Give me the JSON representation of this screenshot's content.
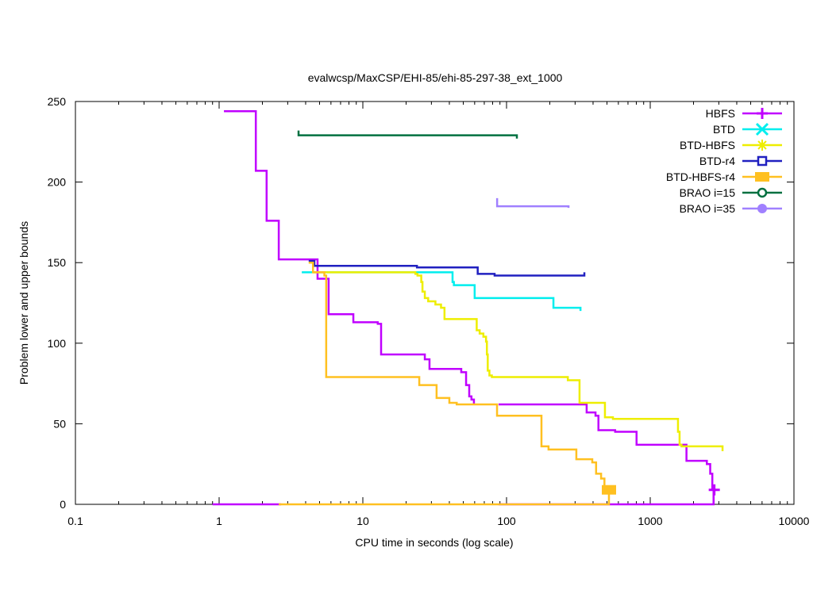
{
  "chart_data": {
    "type": "line",
    "title": "evalwcsp/MaxCSP/EHI-85/ehi-85-297-38_ext_1000",
    "xlabel": "CPU time in seconds (log scale)",
    "ylabel": "Problem lower and upper bounds",
    "xscale": "log",
    "xlim": [
      0.1,
      10000
    ],
    "ylim": [
      0,
      250
    ],
    "xticks": [
      0.1,
      1,
      10,
      100,
      1000,
      10000
    ],
    "xtick_labels": [
      "0.1",
      "1",
      "10",
      "100",
      "1000",
      "10000"
    ],
    "yticks": [
      0,
      50,
      100,
      150,
      200,
      250
    ],
    "ytick_labels": [
      "0",
      "50",
      "100",
      "150",
      "200",
      "250"
    ],
    "legend_position": "top-right",
    "series": [
      {
        "name": "HBFS",
        "color": "#c000ff",
        "marker": "plus",
        "segments": [
          [
            [
              1.08,
              244
            ],
            [
              1.8,
              207
            ],
            [
              2.14,
              176
            ],
            [
              2.6,
              152
            ],
            [
              4.84,
              140
            ],
            [
              5.78,
              118
            ],
            [
              8.59,
              113
            ],
            [
              12.7,
              112
            ],
            [
              13.4,
              93
            ],
            [
              27,
              90
            ],
            [
              29.1,
              84
            ],
            [
              48.4,
              82
            ],
            [
              52.3,
              74
            ],
            [
              55,
              67
            ],
            [
              57,
              65
            ],
            [
              59.3,
              62
            ]
          ],
          [
            [
              88,
              62
            ],
            [
              361,
              57
            ],
            [
              416,
              55
            ],
            [
              436,
              46
            ],
            [
              570,
              45
            ],
            [
              803,
              37
            ],
            [
              1787,
              27
            ],
            [
              2477,
              25
            ],
            [
              2614,
              19
            ],
            [
              2704,
              9
            ],
            [
              2760,
              0
            ]
          ],
          [
            [
              0.9,
              0
            ],
            [
              2.7,
              0
            ]
          ],
          [
            [
              88,
              0
            ],
            [
              2650,
              0
            ],
            [
              2760,
              9
            ]
          ]
        ],
        "markers": [
          [
            2790,
            9
          ]
        ]
      },
      {
        "name": "BTD",
        "color": "#00eeee",
        "marker": "x",
        "segments": [
          [
            [
              3.76,
              144
            ],
            [
              42.1,
              138
            ],
            [
              43,
              136
            ],
            [
              60,
              128
            ],
            [
              212,
              122
            ],
            [
              327,
              120
            ]
          ]
        ],
        "markers": []
      },
      {
        "name": "BTD-HBFS",
        "color": "#eeee00",
        "marker": "star",
        "segments": [
          [
            [
              4.5,
              144
            ],
            [
              23.2,
              143
            ],
            [
              24,
              142
            ],
            [
              25.5,
              138
            ],
            [
              26,
              132
            ],
            [
              27,
              128
            ],
            [
              28.5,
              126
            ],
            [
              32,
              124
            ],
            [
              35,
              122
            ],
            [
              37,
              115
            ],
            [
              62,
              108
            ],
            [
              65,
              106
            ],
            [
              69,
              104
            ],
            [
              72,
              101
            ],
            [
              73,
              93
            ],
            [
              74,
              83
            ],
            [
              76,
              80
            ],
            [
              79,
              79
            ],
            [
              102,
              79
            ],
            [
              267,
              77
            ],
            [
              322,
              63
            ],
            [
              484,
              54
            ],
            [
              550,
              53
            ],
            [
              1560,
              45
            ],
            [
              1600,
              37
            ],
            [
              1650,
              36
            ],
            [
              3185,
              33
            ]
          ]
        ],
        "markers": []
      },
      {
        "name": "BTD-r4",
        "color": "#2020c0",
        "marker": "square-open",
        "segments": [
          [
            [
              4.2,
              151
            ],
            [
              4.6,
              148
            ],
            [
              23.8,
              147
            ],
            [
              63,
              143
            ],
            [
              82.6,
              142
            ],
            [
              348,
              144
            ]
          ]
        ],
        "markers": []
      },
      {
        "name": "BTD-HBFS-r4",
        "color": "#ffc020",
        "marker": "square-filled",
        "segments": [
          [
            [
              4.2,
              150
            ],
            [
              4.5,
              144
            ],
            [
              5.4,
              142
            ],
            [
              5.56,
              79
            ],
            [
              24.7,
              74
            ],
            [
              32.6,
              66
            ],
            [
              40,
              63
            ],
            [
              45,
              62
            ],
            [
              85.9,
              55
            ],
            [
              175,
              36
            ],
            [
              196,
              34
            ],
            [
              306,
              28
            ],
            [
              395,
              26
            ],
            [
              420,
              19
            ],
            [
              455,
              16
            ],
            [
              480,
              9
            ]
          ],
          [
            [
              2.6,
              0
            ],
            [
              495,
              0
            ],
            [
              516,
              9
            ]
          ]
        ],
        "markers": [
          [
            516,
            9
          ]
        ]
      },
      {
        "name": "BRAO i=15",
        "color": "#007040",
        "marker": "circle-open",
        "segments": [
          [
            [
              3.57,
              232
            ],
            [
              3.57,
              229
            ],
            [
              118,
              227
            ]
          ]
        ],
        "markers": []
      },
      {
        "name": "BRAO i=35",
        "color": "#a080ff",
        "marker": "circle-filled",
        "segments": [
          [
            [
              86,
              190
            ],
            [
              86,
              185
            ],
            [
              270,
              184
            ]
          ]
        ],
        "markers": []
      }
    ]
  }
}
